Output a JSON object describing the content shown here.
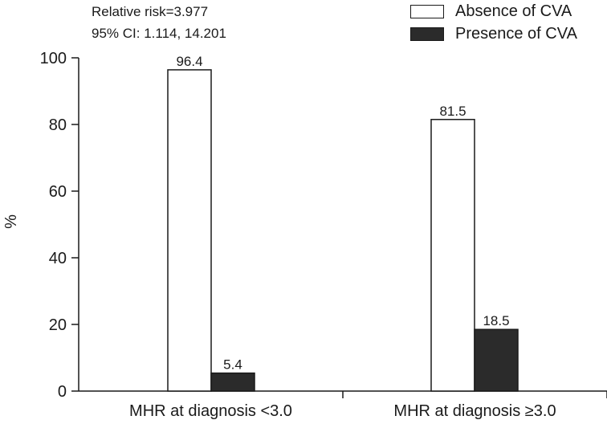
{
  "chart_data": {
    "type": "bar",
    "title": "",
    "xlabel": "",
    "ylabel": "%",
    "ylim": [
      0,
      100
    ],
    "yticks": [
      0,
      20,
      40,
      60,
      80,
      100
    ],
    "categories": [
      "MHR at diagnosis <3.0",
      "MHR at diagnosis ≥3.0"
    ],
    "series": [
      {
        "name": "Absence of CVA",
        "values": [
          96.4,
          81.5
        ],
        "color": "#ffffff",
        "labels": [
          "96.4",
          "81.5"
        ]
      },
      {
        "name": "Presence of CVA",
        "values": [
          5.4,
          18.5
        ],
        "color": "#2b2b2b",
        "labels": [
          "5.4",
          "18.5"
        ]
      }
    ],
    "annotations": [
      "Relative risk=3.977",
      "95% CI: 1.114, 14.201"
    ],
    "grid": false,
    "legend_position": "top-right"
  }
}
